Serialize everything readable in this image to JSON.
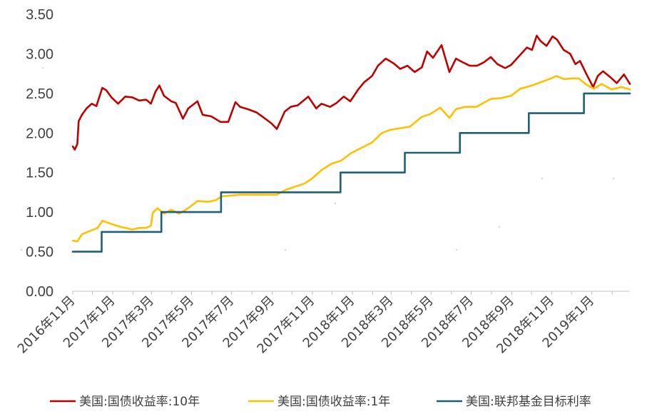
{
  "chart_data": {
    "type": "line",
    "title": "",
    "xlabel": "",
    "ylabel": "",
    "ylim": [
      0,
      3.5
    ],
    "y_ticks": [
      "0.00",
      "0.50",
      "1.00",
      "1.50",
      "2.00",
      "2.50",
      "3.00",
      "3.50"
    ],
    "x_ticks": [
      "2016年11月",
      "2017年1月",
      "2017年3月",
      "2017年5月",
      "2017年7月",
      "2017年9月",
      "2017年11月",
      "2018年1月",
      "2018年3月",
      "2018年5月",
      "2018年7月",
      "2018年9月",
      "2018年11月",
      "2019年1月"
    ],
    "x_range": [
      "2016-11-01",
      "2019-02-28"
    ],
    "grid": false,
    "legend_position": "bottom",
    "series": [
      {
        "name": "美国:国债收益率:10年",
        "color": "#C00000",
        "style": "line",
        "points": [
          [
            "2016-11-01",
            1.83
          ],
          [
            "2016-11-04",
            1.79
          ],
          [
            "2016-11-08",
            1.86
          ],
          [
            "2016-11-10",
            2.15
          ],
          [
            "2016-11-15",
            2.23
          ],
          [
            "2016-11-22",
            2.31
          ],
          [
            "2016-11-30",
            2.37
          ],
          [
            "2016-12-07",
            2.34
          ],
          [
            "2016-12-16",
            2.57
          ],
          [
            "2016-12-22",
            2.54
          ],
          [
            "2016-12-30",
            2.45
          ],
          [
            "2017-01-09",
            2.37
          ],
          [
            "2017-01-20",
            2.46
          ],
          [
            "2017-01-31",
            2.45
          ],
          [
            "2017-02-10",
            2.41
          ],
          [
            "2017-02-21",
            2.42
          ],
          [
            "2017-02-28",
            2.37
          ],
          [
            "2017-03-07",
            2.52
          ],
          [
            "2017-03-13",
            2.6
          ],
          [
            "2017-03-20",
            2.47
          ],
          [
            "2017-03-31",
            2.4
          ],
          [
            "2017-04-07",
            2.38
          ],
          [
            "2017-04-18",
            2.18
          ],
          [
            "2017-04-26",
            2.31
          ],
          [
            "2017-05-10",
            2.4
          ],
          [
            "2017-05-18",
            2.23
          ],
          [
            "2017-05-31",
            2.21
          ],
          [
            "2017-06-14",
            2.14
          ],
          [
            "2017-06-26",
            2.14
          ],
          [
            "2017-07-07",
            2.39
          ],
          [
            "2017-07-14",
            2.33
          ],
          [
            "2017-07-26",
            2.3
          ],
          [
            "2017-08-08",
            2.26
          ],
          [
            "2017-08-18",
            2.2
          ],
          [
            "2017-08-31",
            2.12
          ],
          [
            "2017-09-08",
            2.05
          ],
          [
            "2017-09-20",
            2.27
          ],
          [
            "2017-09-29",
            2.33
          ],
          [
            "2017-10-10",
            2.35
          ],
          [
            "2017-10-26",
            2.46
          ],
          [
            "2017-11-07",
            2.31
          ],
          [
            "2017-11-15",
            2.37
          ],
          [
            "2017-11-28",
            2.33
          ],
          [
            "2017-12-08",
            2.38
          ],
          [
            "2017-12-19",
            2.46
          ],
          [
            "2017-12-29",
            2.4
          ],
          [
            "2018-01-10",
            2.55
          ],
          [
            "2018-01-19",
            2.64
          ],
          [
            "2018-01-31",
            2.72
          ],
          [
            "2018-02-09",
            2.85
          ],
          [
            "2018-02-21",
            2.94
          ],
          [
            "2018-03-05",
            2.88
          ],
          [
            "2018-03-15",
            2.81
          ],
          [
            "2018-03-26",
            2.85
          ],
          [
            "2018-04-06",
            2.77
          ],
          [
            "2018-04-17",
            2.83
          ],
          [
            "2018-04-25",
            3.03
          ],
          [
            "2018-05-04",
            2.95
          ],
          [
            "2018-05-17",
            3.11
          ],
          [
            "2018-05-29",
            2.77
          ],
          [
            "2018-06-08",
            2.94
          ],
          [
            "2018-06-19",
            2.89
          ],
          [
            "2018-06-29",
            2.85
          ],
          [
            "2018-07-10",
            2.85
          ],
          [
            "2018-07-20",
            2.89
          ],
          [
            "2018-07-31",
            2.96
          ],
          [
            "2018-08-10",
            2.87
          ],
          [
            "2018-08-22",
            2.82
          ],
          [
            "2018-08-31",
            2.86
          ],
          [
            "2018-09-12",
            2.97
          ],
          [
            "2018-09-24",
            3.08
          ],
          [
            "2018-10-02",
            3.05
          ],
          [
            "2018-10-09",
            3.23
          ],
          [
            "2018-10-15",
            3.16
          ],
          [
            "2018-10-24",
            3.1
          ],
          [
            "2018-11-02",
            3.22
          ],
          [
            "2018-11-09",
            3.18
          ],
          [
            "2018-11-19",
            3.05
          ],
          [
            "2018-11-29",
            3.0
          ],
          [
            "2018-12-07",
            2.87
          ],
          [
            "2018-12-14",
            2.91
          ],
          [
            "2018-12-24",
            2.74
          ],
          [
            "2019-01-03",
            2.58
          ],
          [
            "2019-01-10",
            2.72
          ],
          [
            "2019-01-18",
            2.78
          ],
          [
            "2019-01-30",
            2.7
          ],
          [
            "2019-02-08",
            2.63
          ],
          [
            "2019-02-19",
            2.74
          ],
          [
            "2019-02-25",
            2.66
          ],
          [
            "2019-02-28",
            2.62
          ]
        ]
      },
      {
        "name": "美国:国债收益率:1年",
        "color": "#FFC000",
        "style": "line",
        "points": [
          [
            "2016-11-01",
            0.64
          ],
          [
            "2016-11-08",
            0.63
          ],
          [
            "2016-11-15",
            0.72
          ],
          [
            "2016-11-30",
            0.77
          ],
          [
            "2016-12-09",
            0.8
          ],
          [
            "2016-12-16",
            0.89
          ],
          [
            "2016-12-30",
            0.85
          ],
          [
            "2017-01-10",
            0.82
          ],
          [
            "2017-01-20",
            0.8
          ],
          [
            "2017-01-31",
            0.78
          ],
          [
            "2017-02-10",
            0.8
          ],
          [
            "2017-02-21",
            0.8
          ],
          [
            "2017-02-28",
            0.83
          ],
          [
            "2017-03-03",
            0.99
          ],
          [
            "2017-03-10",
            1.05
          ],
          [
            "2017-03-20",
            0.98
          ],
          [
            "2017-03-31",
            1.03
          ],
          [
            "2017-04-12",
            0.98
          ],
          [
            "2017-04-26",
            1.05
          ],
          [
            "2017-05-10",
            1.14
          ],
          [
            "2017-05-26",
            1.13
          ],
          [
            "2017-06-07",
            1.15
          ],
          [
            "2017-06-16",
            1.2
          ],
          [
            "2017-06-30",
            1.21
          ],
          [
            "2017-07-14",
            1.22
          ],
          [
            "2017-07-31",
            1.22
          ],
          [
            "2017-08-15",
            1.22
          ],
          [
            "2017-08-31",
            1.22
          ],
          [
            "2017-09-08",
            1.22
          ],
          [
            "2017-09-21",
            1.28
          ],
          [
            "2017-10-05",
            1.32
          ],
          [
            "2017-10-20",
            1.36
          ],
          [
            "2017-10-31",
            1.42
          ],
          [
            "2017-11-15",
            1.53
          ],
          [
            "2017-11-30",
            1.61
          ],
          [
            "2017-12-15",
            1.65
          ],
          [
            "2017-12-29",
            1.74
          ],
          [
            "2018-01-12",
            1.8
          ],
          [
            "2018-01-31",
            1.88
          ],
          [
            "2018-02-15",
            2.0
          ],
          [
            "2018-02-28",
            2.04
          ],
          [
            "2018-03-15",
            2.06
          ],
          [
            "2018-03-30",
            2.08
          ],
          [
            "2018-04-16",
            2.2
          ],
          [
            "2018-04-30",
            2.24
          ],
          [
            "2018-05-15",
            2.32
          ],
          [
            "2018-05-29",
            2.19
          ],
          [
            "2018-06-08",
            2.3
          ],
          [
            "2018-06-21",
            2.33
          ],
          [
            "2018-07-09",
            2.33
          ],
          [
            "2018-07-31",
            2.43
          ],
          [
            "2018-08-15",
            2.44
          ],
          [
            "2018-08-31",
            2.47
          ],
          [
            "2018-09-14",
            2.56
          ],
          [
            "2018-09-28",
            2.59
          ],
          [
            "2018-10-12",
            2.63
          ],
          [
            "2018-10-31",
            2.69
          ],
          [
            "2018-11-08",
            2.72
          ],
          [
            "2018-11-20",
            2.68
          ],
          [
            "2018-11-30",
            2.69
          ],
          [
            "2018-12-12",
            2.69
          ],
          [
            "2018-12-24",
            2.61
          ],
          [
            "2019-01-04",
            2.56
          ],
          [
            "2019-01-16",
            2.62
          ],
          [
            "2019-01-31",
            2.55
          ],
          [
            "2019-02-15",
            2.58
          ],
          [
            "2019-02-28",
            2.55
          ]
        ]
      },
      {
        "name": "美国:联邦基金目标利率",
        "color": "#1F5F7A",
        "style": "step",
        "points": [
          [
            "2016-11-01",
            0.5
          ],
          [
            "2016-12-15",
            0.75
          ],
          [
            "2017-03-16",
            1.0
          ],
          [
            "2017-06-15",
            1.25
          ],
          [
            "2017-12-14",
            1.5
          ],
          [
            "2018-03-22",
            1.75
          ],
          [
            "2018-06-14",
            2.0
          ],
          [
            "2018-09-27",
            2.25
          ],
          [
            "2018-12-20",
            2.5
          ],
          [
            "2019-02-28",
            2.5
          ]
        ]
      }
    ]
  }
}
